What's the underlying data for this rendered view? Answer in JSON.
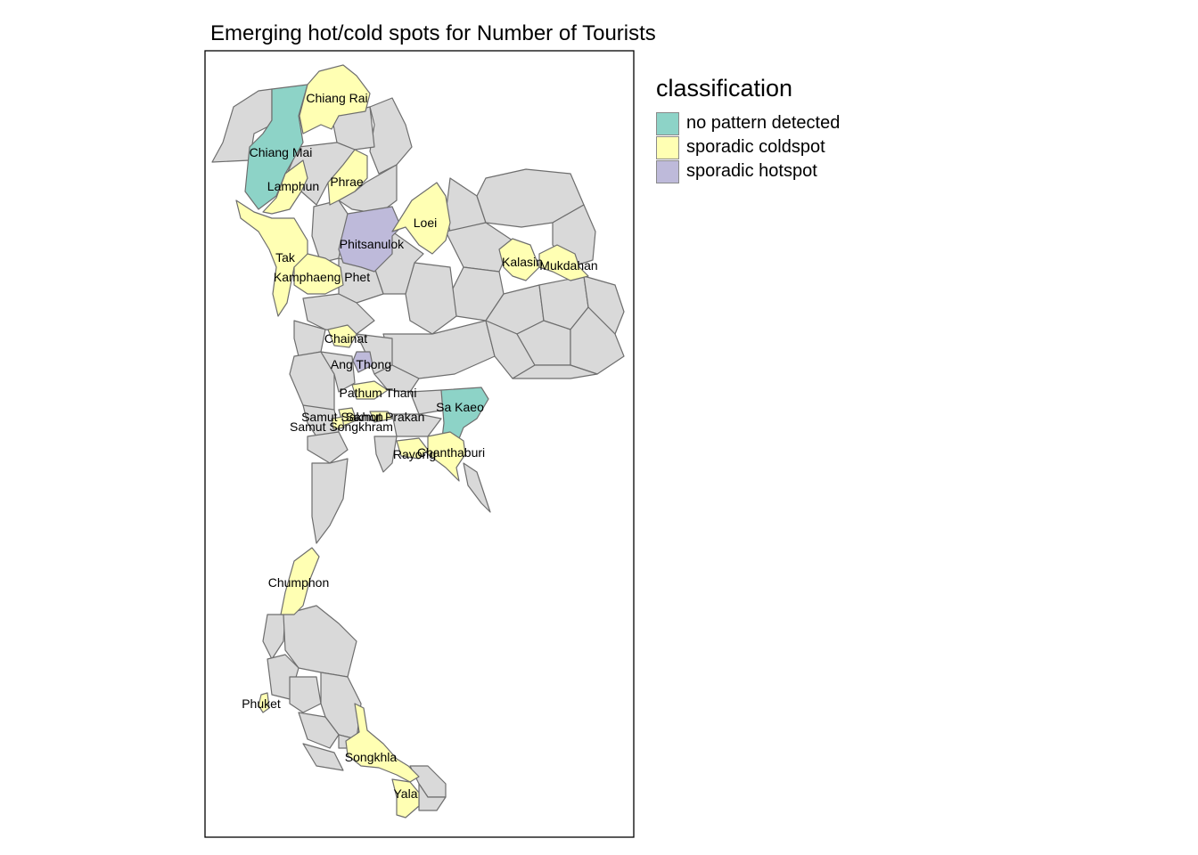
{
  "title": "Emerging hot/cold spots for Number of Tourists",
  "colors": {
    "no_pattern": "#8dd3c7",
    "coldspot": "#ffffb3",
    "hotspot": "#bebada",
    "other": "#d9d9d9",
    "border": "#6e6e6e"
  },
  "legend": {
    "title": "classification",
    "items": [
      {
        "label": "no pattern detected",
        "color": "#8dd3c7"
      },
      {
        "label": "sporadic coldspot",
        "color": "#ffffb3"
      },
      {
        "label": "sporadic hotspot",
        "color": "#bebada"
      }
    ]
  },
  "provinces": [
    {
      "name": "Chiang Rai",
      "class": "sporadic coldspot"
    },
    {
      "name": "Chiang Mai",
      "class": "no pattern detected"
    },
    {
      "name": "Lamphun",
      "class": "sporadic coldspot"
    },
    {
      "name": "Phrae",
      "class": "sporadic coldspot"
    },
    {
      "name": "Loei",
      "class": "sporadic coldspot"
    },
    {
      "name": "Phitsanulok",
      "class": "sporadic hotspot"
    },
    {
      "name": "Tak",
      "class": "sporadic coldspot"
    },
    {
      "name": "Kamphaeng Phet",
      "class": "sporadic coldspot"
    },
    {
      "name": "Kalasin",
      "class": "sporadic coldspot"
    },
    {
      "name": "Mukdahan",
      "class": "sporadic coldspot"
    },
    {
      "name": "Chainat",
      "class": "sporadic coldspot"
    },
    {
      "name": "Ang Thong",
      "class": "sporadic hotspot"
    },
    {
      "name": "Pathum Thani",
      "class": "sporadic coldspot"
    },
    {
      "name": "Sa Kaeo",
      "class": "no pattern detected"
    },
    {
      "name": "Samut Sakhon",
      "class": "sporadic coldspot"
    },
    {
      "name": "Samut Prakan",
      "class": "sporadic coldspot"
    },
    {
      "name": "Samut Songkhram",
      "class": "sporadic coldspot"
    },
    {
      "name": "Rayong",
      "class": "sporadic coldspot"
    },
    {
      "name": "Chanthaburi",
      "class": "sporadic coldspot"
    },
    {
      "name": "Chumphon",
      "class": "sporadic coldspot"
    },
    {
      "name": "Phuket",
      "class": "sporadic coldspot"
    },
    {
      "name": "Songkhla",
      "class": "sporadic coldspot"
    },
    {
      "name": "Yala",
      "class": "sporadic coldspot"
    }
  ]
}
